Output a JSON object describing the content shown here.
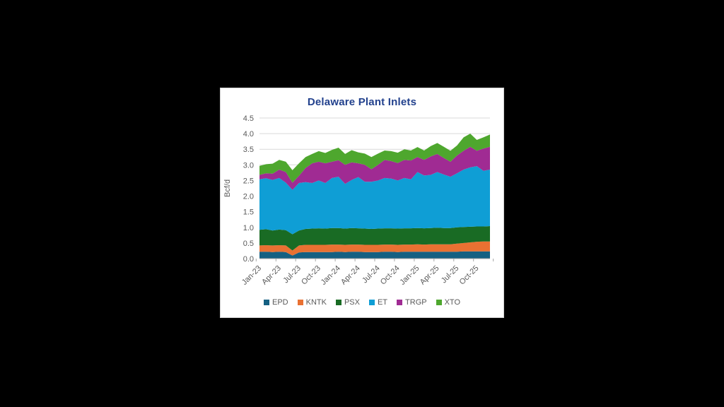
{
  "panel": {
    "background": "#FFFFFF",
    "border_color": "#CFCFCF",
    "page_background": "#000000"
  },
  "chart_data": {
    "type": "area",
    "stacked": true,
    "title": "Delaware Plant Inlets",
    "title_color": "#22418D",
    "xlabel": "",
    "ylabel": "Bcf/d",
    "ylim": [
      0,
      4.5
    ],
    "ytick_step": 0.5,
    "ytick_labels": [
      "0.0",
      "0.5",
      "1.0",
      "1.5",
      "2.0",
      "2.5",
      "3.0",
      "3.5",
      "4.0",
      "4.5"
    ],
    "grid": true,
    "grid_color": "#D9D9D9",
    "axis_color": "#A6A6A6",
    "tick_color": "#595959",
    "legend_position": "bottom",
    "categories": [
      "Jan-23",
      "Feb-23",
      "Mar-23",
      "Apr-23",
      "May-23",
      "Jun-23",
      "Jul-23",
      "Aug-23",
      "Sep-23",
      "Oct-23",
      "Nov-23",
      "Dec-23",
      "Jan-24",
      "Feb-24",
      "Mar-24",
      "Apr-24",
      "May-24",
      "Jun-24",
      "Jul-24",
      "Aug-24",
      "Sep-24",
      "Oct-24",
      "Nov-24",
      "Dec-24",
      "Jan-25",
      "Feb-25",
      "Mar-25",
      "Apr-25",
      "May-25",
      "Jun-25",
      "Jul-25",
      "Aug-25",
      "Sep-25",
      "Oct-25",
      "Nov-25",
      "Dec-25"
    ],
    "xtick_labels": [
      "Jan-23",
      "Apr-23",
      "Jul-23",
      "Oct-23",
      "Jan-24",
      "Apr-24",
      "Jul-24",
      "Oct-24",
      "Jan-25",
      "Apr-25",
      "Jul-25",
      "Oct-25"
    ],
    "series": [
      {
        "name": "EPD",
        "color": "#156082",
        "values": [
          0.22,
          0.22,
          0.21,
          0.22,
          0.21,
          0.1,
          0.2,
          0.21,
          0.21,
          0.21,
          0.21,
          0.21,
          0.22,
          0.21,
          0.22,
          0.22,
          0.21,
          0.21,
          0.21,
          0.22,
          0.22,
          0.21,
          0.22,
          0.22,
          0.22,
          0.22,
          0.22,
          0.22,
          0.22,
          0.22,
          0.22,
          0.23,
          0.23,
          0.23,
          0.23,
          0.23
        ]
      },
      {
        "name": "KNTK",
        "color": "#E97132",
        "values": [
          0.2,
          0.21,
          0.21,
          0.21,
          0.21,
          0.16,
          0.22,
          0.23,
          0.23,
          0.23,
          0.23,
          0.24,
          0.23,
          0.23,
          0.23,
          0.23,
          0.23,
          0.23,
          0.23,
          0.23,
          0.23,
          0.23,
          0.23,
          0.23,
          0.24,
          0.23,
          0.24,
          0.24,
          0.24,
          0.24,
          0.26,
          0.27,
          0.29,
          0.31,
          0.32,
          0.32
        ]
      },
      {
        "name": "PSX",
        "color": "#196B24",
        "values": [
          0.5,
          0.51,
          0.48,
          0.5,
          0.49,
          0.52,
          0.48,
          0.51,
          0.52,
          0.53,
          0.52,
          0.53,
          0.53,
          0.52,
          0.53,
          0.52,
          0.52,
          0.51,
          0.52,
          0.52,
          0.52,
          0.52,
          0.52,
          0.52,
          0.52,
          0.52,
          0.52,
          0.53,
          0.52,
          0.52,
          0.52,
          0.51,
          0.5,
          0.49,
          0.48,
          0.49
        ]
      },
      {
        "name": "ET",
        "color": "#0F9ED5",
        "values": [
          1.62,
          1.63,
          1.62,
          1.65,
          1.52,
          1.42,
          1.52,
          1.5,
          1.46,
          1.53,
          1.46,
          1.6,
          1.64,
          1.43,
          1.54,
          1.64,
          1.5,
          1.51,
          1.54,
          1.61,
          1.59,
          1.54,
          1.61,
          1.57,
          1.79,
          1.69,
          1.7,
          1.78,
          1.71,
          1.64,
          1.73,
          1.84,
          1.9,
          1.93,
          1.78,
          1.81
        ]
      },
      {
        "name": "TRGP",
        "color": "#A02B93",
        "values": [
          0.14,
          0.16,
          0.2,
          0.27,
          0.34,
          0.23,
          0.23,
          0.45,
          0.63,
          0.6,
          0.63,
          0.52,
          0.53,
          0.61,
          0.56,
          0.44,
          0.54,
          0.4,
          0.5,
          0.58,
          0.56,
          0.56,
          0.58,
          0.6,
          0.48,
          0.5,
          0.59,
          0.58,
          0.53,
          0.48,
          0.57,
          0.6,
          0.66,
          0.49,
          0.71,
          0.73
        ]
      },
      {
        "name": "XTO",
        "color": "#4EA72E",
        "values": [
          0.29,
          0.29,
          0.32,
          0.31,
          0.33,
          0.4,
          0.4,
          0.35,
          0.3,
          0.34,
          0.33,
          0.38,
          0.4,
          0.35,
          0.39,
          0.35,
          0.36,
          0.39,
          0.36,
          0.3,
          0.32,
          0.33,
          0.34,
          0.32,
          0.32,
          0.3,
          0.33,
          0.35,
          0.36,
          0.35,
          0.32,
          0.43,
          0.42,
          0.35,
          0.36,
          0.39
        ]
      }
    ]
  }
}
